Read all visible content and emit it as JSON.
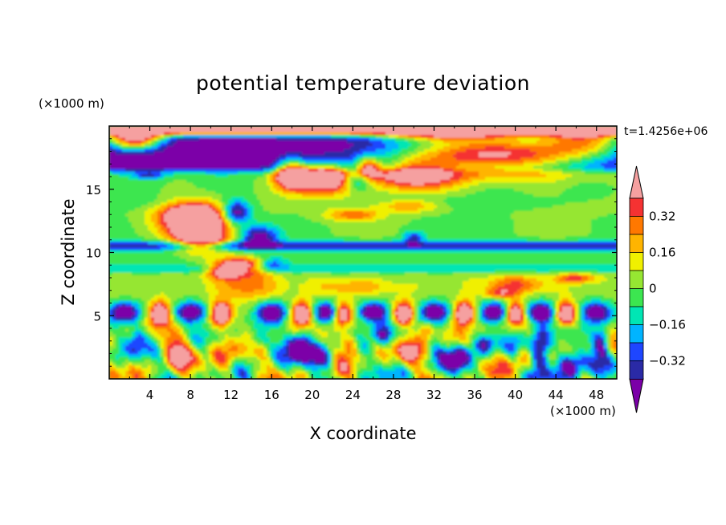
{
  "chart_data": {
    "type": "heatmap",
    "title": "potential temperature deviation",
    "xlabel": "X coordinate",
    "ylabel": "Z coordinate",
    "x_units": "(×1000 m)",
    "y_units": "(×1000 m)",
    "time_label": "t=1.4256e+06",
    "xlim": [
      0,
      50
    ],
    "ylim": [
      0,
      20
    ],
    "x_ticks": [
      4,
      8,
      12,
      16,
      20,
      24,
      28,
      32,
      36,
      40,
      44,
      48
    ],
    "x_tick_labels": [
      "4",
      "8",
      "12",
      "16",
      "20",
      "24",
      "28",
      "32",
      "36",
      "40",
      "44",
      "48"
    ],
    "y_ticks": [
      5,
      10,
      15
    ],
    "y_tick_labels": [
      "5",
      "10",
      "15"
    ],
    "colorbar": {
      "levels": [
        -0.4,
        -0.32,
        -0.24,
        -0.16,
        -0.08,
        0,
        0.08,
        0.16,
        0.24,
        0.32,
        0.4
      ],
      "tick_values": [
        0.32,
        0.16,
        0,
        -0.16,
        -0.32
      ],
      "tick_labels": [
        "0.32",
        "0.16",
        "0",
        "−0.16",
        "−0.32"
      ],
      "colors": [
        "#7b00a8",
        "#2a2aa6",
        "#1e46ff",
        "#00b4ff",
        "#00e6b4",
        "#3ce650",
        "#96e632",
        "#f0f000",
        "#ffb400",
        "#ff7800",
        "#f53232",
        "#f5a0a0"
      ],
      "extend": "both"
    },
    "features": [
      {
        "kind": "layer",
        "z_range": [
          19.5,
          20
        ],
        "value": "high",
        "color": "#f5a0a0"
      },
      {
        "kind": "layer",
        "z_range": [
          16.5,
          19.2
        ],
        "value": "very low",
        "color": "#7b00a8"
      },
      {
        "kind": "layer",
        "z_range": [
          10.2,
          10.8
        ],
        "value": "low",
        "color": "#2a2aa6"
      },
      {
        "kind": "blob",
        "x": [
          3,
          12
        ],
        "z": [
          10,
          14
        ],
        "value": "high",
        "color": "#f5a0a0"
      },
      {
        "kind": "blob",
        "x": [
          15,
          27
        ],
        "z": [
          14.5,
          17.5
        ],
        "value": "high",
        "color": "#f5a0a0"
      },
      {
        "kind": "blob",
        "x": [
          27,
          50
        ],
        "z": [
          14.5,
          19.5
        ],
        "value": "high",
        "color": "#f5a0a0"
      },
      {
        "kind": "row",
        "z_range": [
          0,
          5
        ],
        "value": "mixed convective cells"
      }
    ]
  }
}
